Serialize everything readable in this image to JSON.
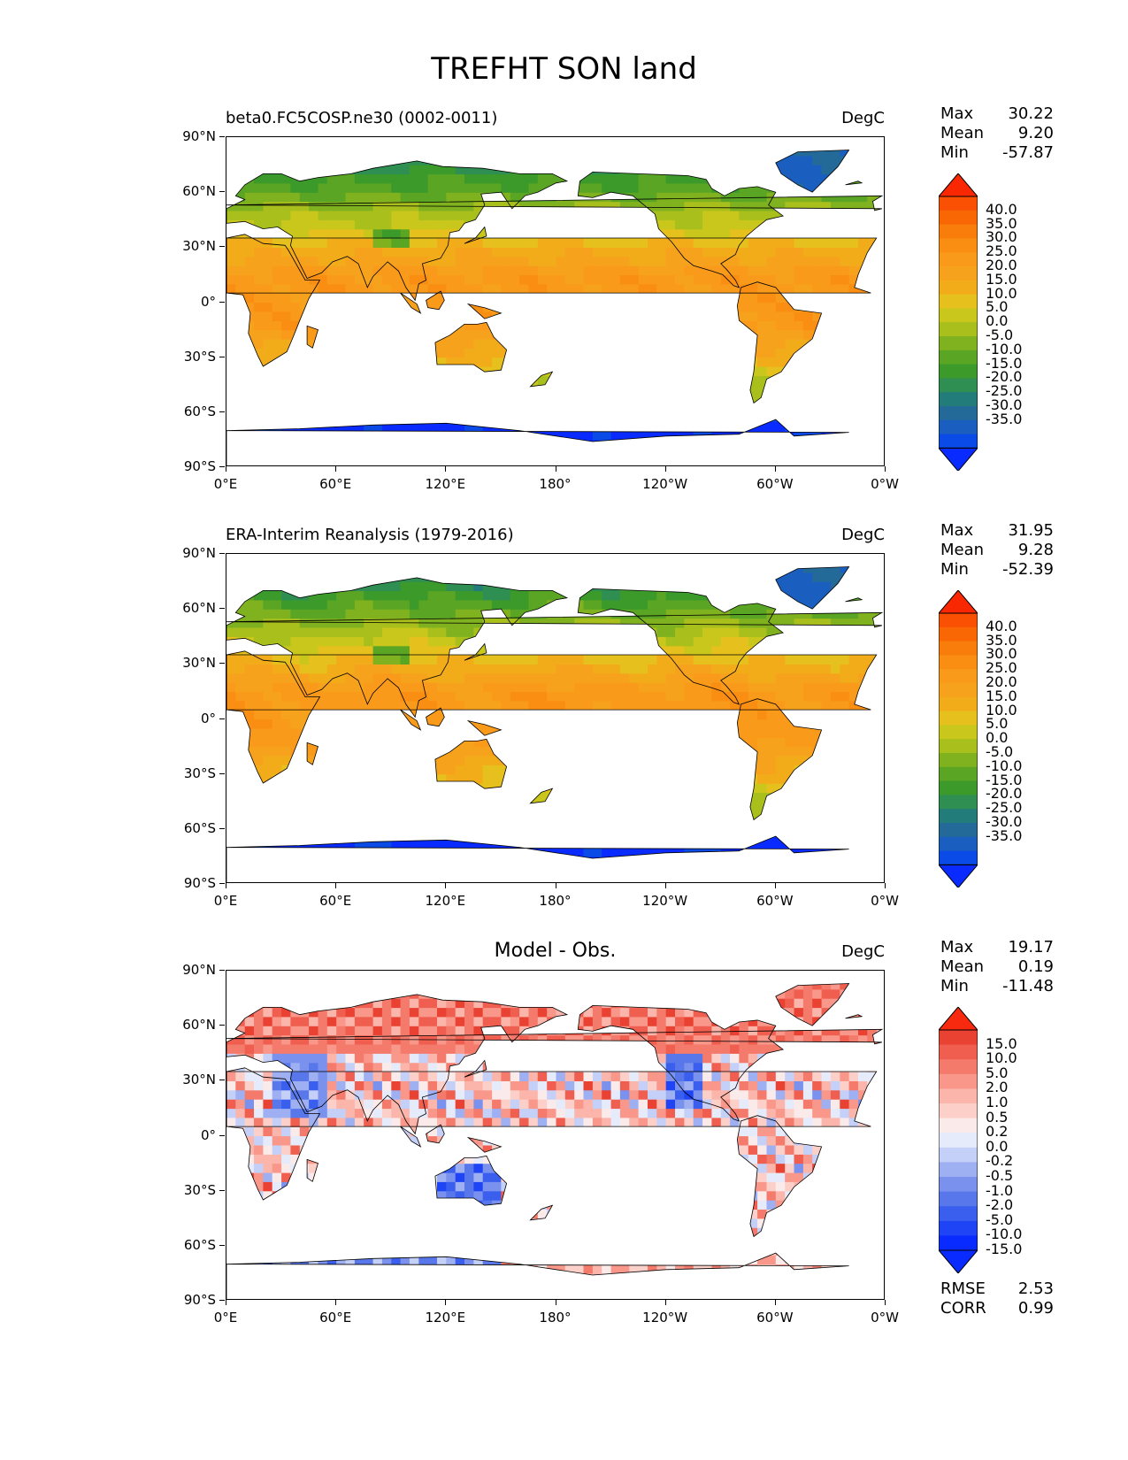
{
  "title": "TREFHT SON land",
  "lat_ticks": [
    "90°N",
    "60°N",
    "30°N",
    "0°",
    "30°S",
    "60°S",
    "90°S"
  ],
  "lon_ticks": [
    "0°E",
    "60°E",
    "120°E",
    "180°",
    "120°W",
    "60°W",
    "0°W"
  ],
  "temp_colors": [
    "#0a2bff",
    "#0a4ae6",
    "#1a5fbf",
    "#236a99",
    "#227d7a",
    "#2f8f53",
    "#3b9a2a",
    "#5aa524",
    "#7fb21e",
    "#a8bf1c",
    "#c9c71c",
    "#e6c01c",
    "#f2ac1a",
    "#f7a21c",
    "#f99a1a",
    "#f98e12",
    "#f97d0a",
    "#f96705",
    "#f95003",
    "#fa2802"
  ],
  "diff_colors": [
    "#0a2bff",
    "#1f44f5",
    "#3a5fee",
    "#5877ea",
    "#7a92ee",
    "#9eb0f2",
    "#c5d0f8",
    "#e6ebfc",
    "#fbeaea",
    "#fcd0c8",
    "#fbb5aa",
    "#f8978a",
    "#f47a6c",
    "#ef5e4f",
    "#e94232",
    "#f72a0f"
  ],
  "panels": [
    {
      "title_left": "beta0.FC5COSP.ne30 (0002-0011)",
      "title_center": "",
      "units": "DegC",
      "stats": [
        {
          "label": "Max",
          "value": "30.22"
        },
        {
          "label": "Mean",
          "value": "9.20"
        },
        {
          "label": "Min",
          "value": "-57.87"
        }
      ],
      "levels": [
        "40.0",
        "35.0",
        "30.0",
        "25.0",
        "20.0",
        "15.0",
        "10.0",
        "5.0",
        "0.0",
        "-5.0",
        "-10.0",
        "-15.0",
        "-20.0",
        "-25.0",
        "-30.0",
        "-35.0"
      ],
      "scheme": "temp"
    },
    {
      "title_left": "ERA-Interim Reanalysis (1979-2016)",
      "title_center": "",
      "units": "DegC",
      "stats": [
        {
          "label": "Max",
          "value": "31.95"
        },
        {
          "label": "Mean",
          "value": "9.28"
        },
        {
          "label": "Min",
          "value": "-52.39"
        }
      ],
      "levels": [
        "40.0",
        "35.0",
        "30.0",
        "25.0",
        "20.0",
        "15.0",
        "10.0",
        "5.0",
        "0.0",
        "-5.0",
        "-10.0",
        "-15.0",
        "-20.0",
        "-25.0",
        "-30.0",
        "-35.0"
      ],
      "scheme": "temp"
    },
    {
      "title_left": "",
      "title_center": "Model - Obs.",
      "units": "DegC",
      "stats": [
        {
          "label": "Max",
          "value": "19.17"
        },
        {
          "label": "Mean",
          "value": "0.19"
        },
        {
          "label": "Min",
          "value": "-11.48"
        }
      ],
      "levels": [
        "15.0",
        "10.0",
        "5.0",
        "2.0",
        "1.0",
        "0.5",
        "0.2",
        "0.0",
        "-0.2",
        "-0.5",
        "-1.0",
        "-2.0",
        "-5.0",
        "-10.0",
        "-15.0"
      ],
      "scheme": "diff",
      "footer": [
        {
          "label": "RMSE",
          "value": "2.53"
        },
        {
          "label": "CORR",
          "value": "0.99"
        }
      ]
    }
  ]
}
